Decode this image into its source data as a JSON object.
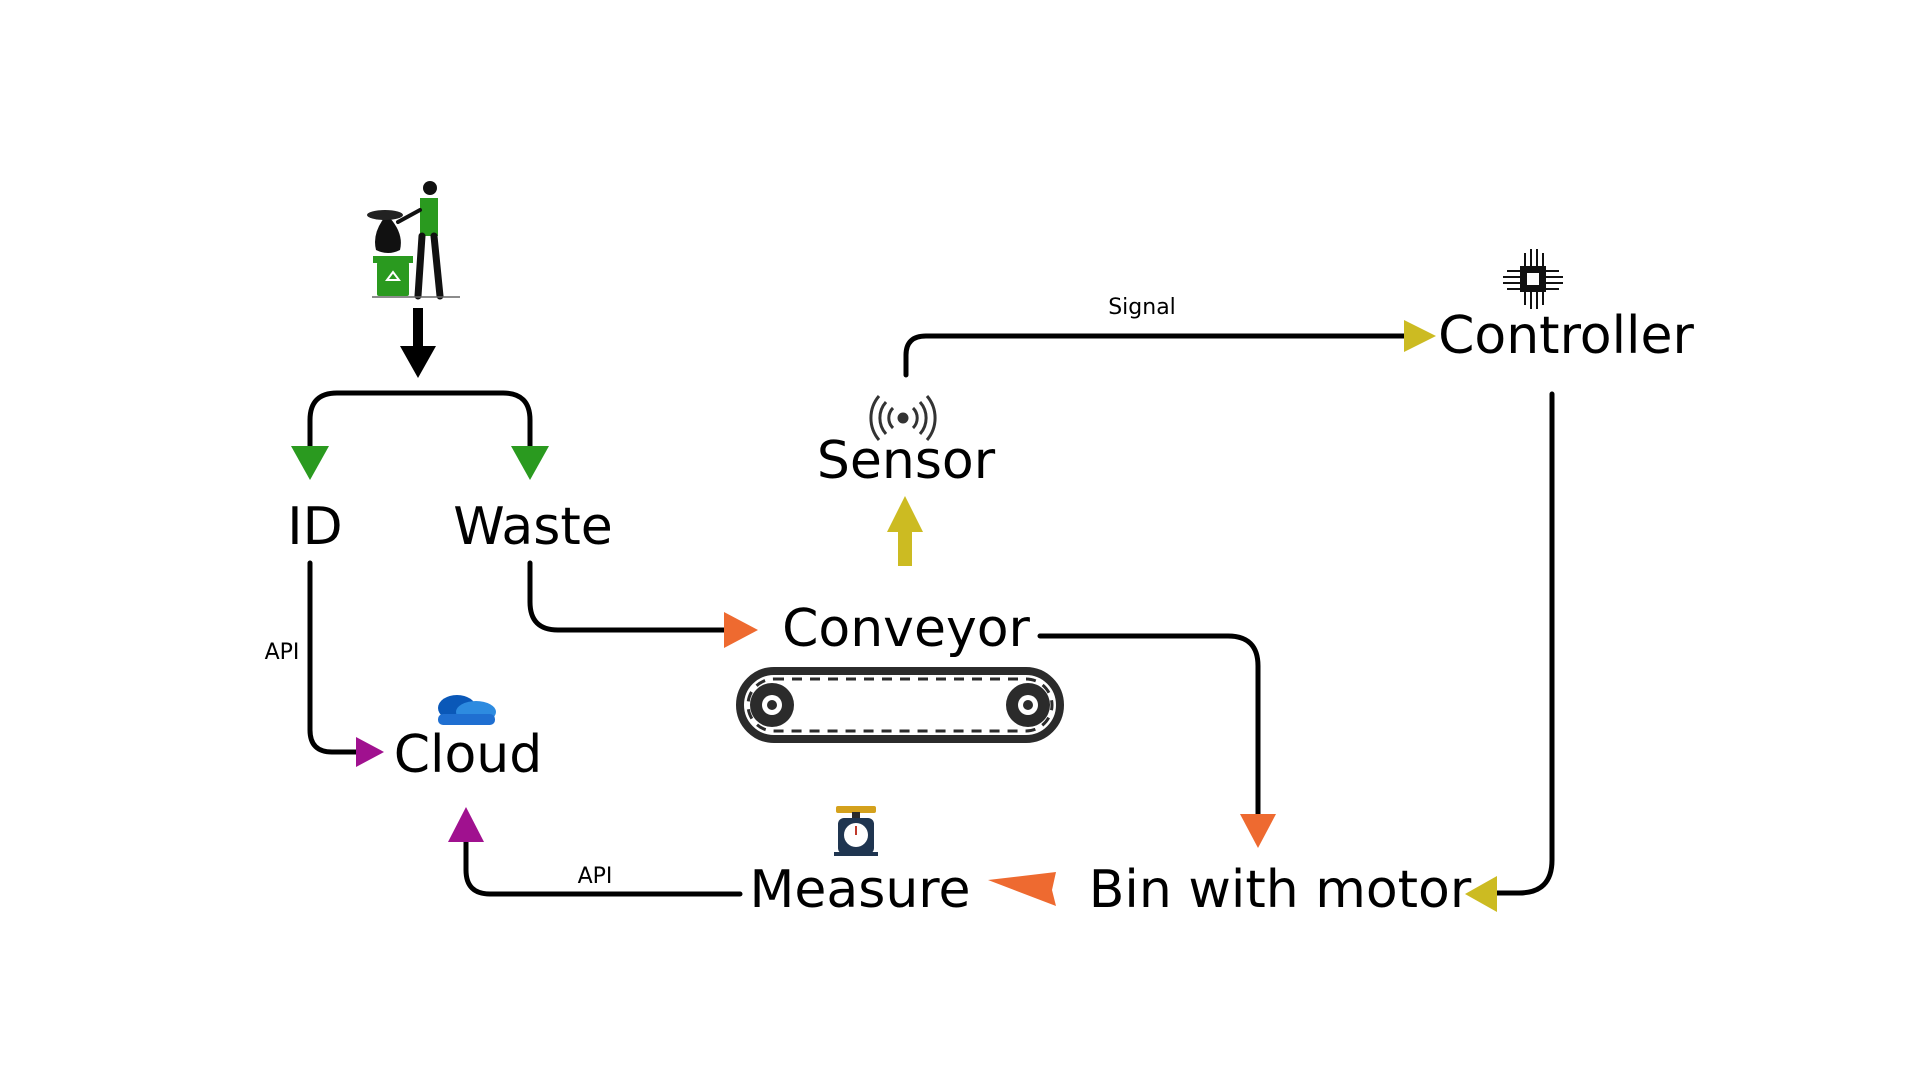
{
  "nodes": {
    "id": "ID",
    "waste": "Waste",
    "cloud": "Cloud",
    "conveyor": "Conveyor",
    "sensor": "Sensor",
    "controller": "Controller",
    "bin": "Bin with motor",
    "measure": "Measure"
  },
  "edge_labels": {
    "id_to_cloud": "API",
    "sensor_to_controller": "Signal",
    "measure_to_cloud": "API"
  },
  "icons": {
    "person": "person-disposing-trash-icon",
    "cloud": "onedrive-cloud-icon",
    "sensor": "wireless-sensor-icon",
    "controller": "microchip-icon",
    "conveyor": "conveyor-belt-icon",
    "measure": "weighing-scale-icon"
  },
  "colors": {
    "green": "#2a9a1f",
    "orange": "#ee6a30",
    "yellow": "#ccbb22",
    "purple": "#a0118f",
    "cloud_blue": "#1f6fd1",
    "lines": "#000000"
  }
}
